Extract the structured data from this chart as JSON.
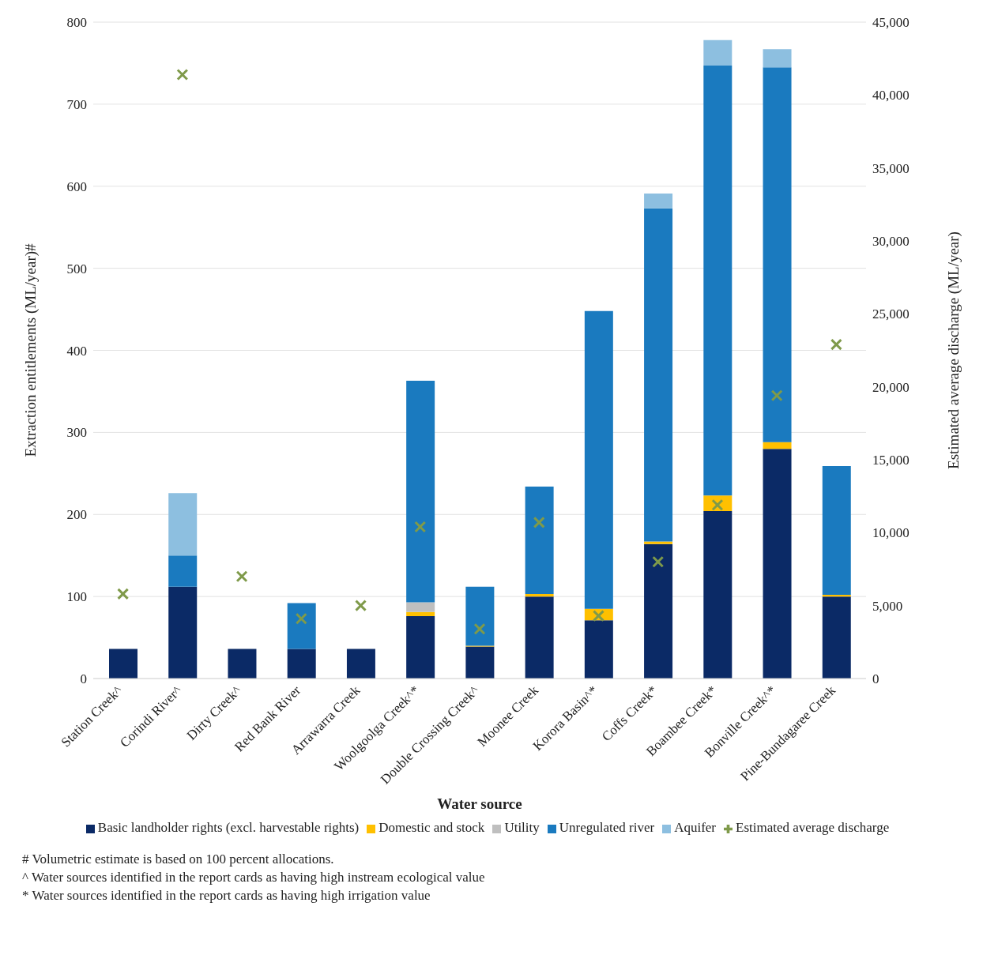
{
  "chart_data": {
    "type": "bar",
    "stacked": true,
    "xlabel": "Water source",
    "ylabel": "Extraction entitlements (ML/year)#",
    "y2label": "Estimated average discharge (ML/year)",
    "categories": [
      "Station Creek^",
      "Corindi River^",
      "Dirty Creek^",
      "Red Bank River",
      "Arrawarra Creek",
      "Woolgoolga Creek^*",
      "Double Crossing Creek^",
      "Moonee Creek",
      "Korora Basin^*",
      "Coffs Creek*",
      "Boambee Creek*",
      "Bonville Creek^*",
      "Pine-Bundagaree Creek"
    ],
    "series": [
      {
        "name": "Basic landholder rights (excl. harvestable rights)",
        "color": "#0b2a66",
        "values": [
          36,
          112,
          36,
          36,
          36,
          76,
          39,
          100,
          71,
          164,
          204,
          280,
          100
        ]
      },
      {
        "name": "Domestic and stock",
        "color": "#ffc000",
        "values": [
          0,
          0,
          0,
          0,
          0,
          5,
          1,
          3,
          14,
          3,
          19,
          8,
          2
        ]
      },
      {
        "name": "Utility",
        "color": "#bfbfbf",
        "values": [
          0,
          0,
          0,
          0,
          0,
          12,
          0,
          0,
          0,
          0,
          0,
          0,
          0
        ]
      },
      {
        "name": "Unregulated river",
        "color": "#1a7abf",
        "values": [
          0,
          38,
          0,
          56,
          0,
          270,
          72,
          131,
          363,
          406,
          524,
          457,
          157
        ]
      },
      {
        "name": "Aquifer",
        "color": "#8dbfe0",
        "values": [
          0,
          76,
          0,
          0,
          0,
          0,
          0,
          0,
          0,
          18,
          31,
          22,
          0
        ]
      },
      {
        "name": "Estimated average discharge",
        "type": "scatter",
        "axis": "y2",
        "marker": "cross",
        "color": "#7f9a4a",
        "values": [
          5800,
          41400,
          7000,
          4100,
          5000,
          10400,
          3400,
          10700,
          4300,
          8000,
          11900,
          19400,
          22900
        ]
      }
    ],
    "ylim": [
      0,
      800
    ],
    "yticks": [
      0,
      100,
      200,
      300,
      400,
      500,
      600,
      700,
      800
    ],
    "y2lim": [
      0,
      45000
    ],
    "y2ticks": [
      {
        "value": 0,
        "label": "0"
      },
      {
        "value": 5000,
        "label": "5,000"
      },
      {
        "value": 10000,
        "label": "10,000"
      },
      {
        "value": 15000,
        "label": "15,000"
      },
      {
        "value": 20000,
        "label": "20,000"
      },
      {
        "value": 25000,
        "label": "25,000"
      },
      {
        "value": 30000,
        "label": "30,000"
      },
      {
        "value": 35000,
        "label": "35,000"
      },
      {
        "value": 40000,
        "label": "40,000"
      },
      {
        "value": 45000,
        "label": "45,000"
      }
    ],
    "grid": "y",
    "legend": "bottom",
    "annotations": [
      "# Volumetric estimate is based on 100 percent allocations.",
      "^ Water sources identified in the report cards as having high instream ecological value",
      "* Water sources identified in the report cards as having high irrigation value"
    ]
  }
}
